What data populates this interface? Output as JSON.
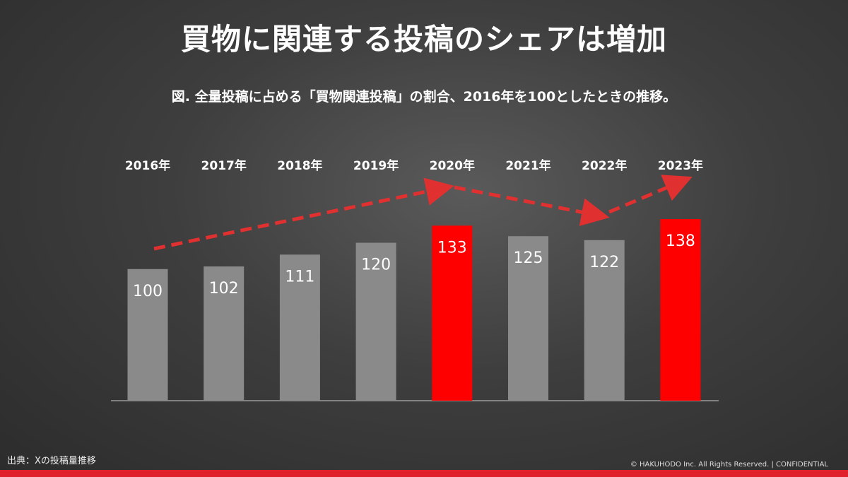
{
  "title": "買物に関連する投稿のシェアは増加",
  "footer": {
    "source": "出典：Xの投稿量推移",
    "copyright": "© HAKUHODO Inc. All Rights Reserved. | CONFIDENTIAL"
  },
  "colors": {
    "normal": "#8a8a8a",
    "highlight": "#ff0000",
    "arrow": "#e03030"
  },
  "chart_data": {
    "type": "bar",
    "title": "図. 全量投稿に占める「買物関連投稿」の割合、2016年を100としたときの推移。",
    "categories": [
      "2016年",
      "2017年",
      "2018年",
      "2019年",
      "2020年",
      "2021年",
      "2022年",
      "2023年"
    ],
    "values": [
      100,
      102,
      111,
      120,
      133,
      125,
      122,
      138
    ],
    "highlighted": [
      false,
      false,
      false,
      false,
      true,
      false,
      false,
      true
    ],
    "ylim": [
      0,
      138
    ],
    "grid": false,
    "xlabel": "",
    "ylabel": ""
  }
}
